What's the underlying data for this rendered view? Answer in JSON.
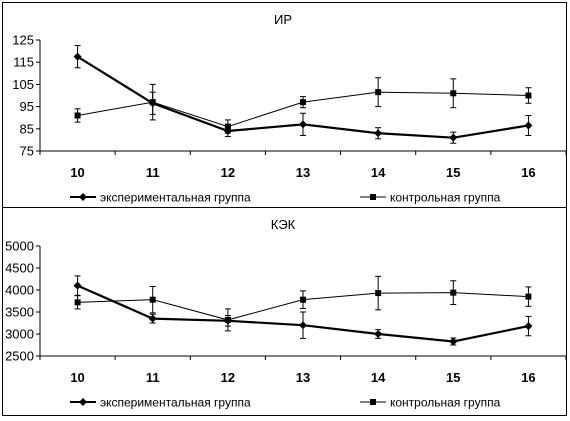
{
  "chart_data": [
    {
      "type": "line",
      "title": "ИР",
      "categories": [
        "10",
        "11",
        "12",
        "13",
        "14",
        "15",
        "16"
      ],
      "ylim": [
        75,
        125
      ],
      "yticks": [
        75,
        85,
        95,
        105,
        115,
        125
      ],
      "grid": false,
      "legend_position": "bottom",
      "series": [
        {
          "name": "экспериментальная группа",
          "marker": "diamond",
          "line": "thick",
          "values": [
            117.5,
            96.5,
            84,
            87,
            83,
            81,
            86.5
          ],
          "err": [
            5,
            5,
            2.5,
            5,
            2.5,
            2.5,
            4.5
          ]
        },
        {
          "name": "контрольная группа",
          "marker": "square",
          "line": "thin",
          "values": [
            91,
            97,
            86,
            97,
            101.5,
            101,
            100
          ],
          "err": [
            3,
            8,
            3,
            2.5,
            6.5,
            6.5,
            3.5
          ]
        }
      ]
    },
    {
      "type": "line",
      "title": "КЭК",
      "categories": [
        "10",
        "11",
        "12",
        "13",
        "14",
        "15",
        "16"
      ],
      "ylim": [
        2500,
        5000
      ],
      "yticks": [
        2500,
        3000,
        3500,
        4000,
        4500,
        5000
      ],
      "grid": false,
      "legend_position": "bottom",
      "series": [
        {
          "name": "экспериментальная группа",
          "marker": "diamond",
          "line": "thick",
          "values": [
            4100,
            3350,
            3300,
            3200,
            3000,
            2830,
            3180
          ],
          "err": [
            220,
            100,
            120,
            300,
            100,
            80,
            220
          ]
        },
        {
          "name": "контрольная группа",
          "marker": "square",
          "line": "thin",
          "values": [
            3720,
            3780,
            3320,
            3780,
            3930,
            3940,
            3850
          ],
          "err": [
            150,
            300,
            250,
            200,
            380,
            270,
            220
          ]
        }
      ]
    }
  ]
}
